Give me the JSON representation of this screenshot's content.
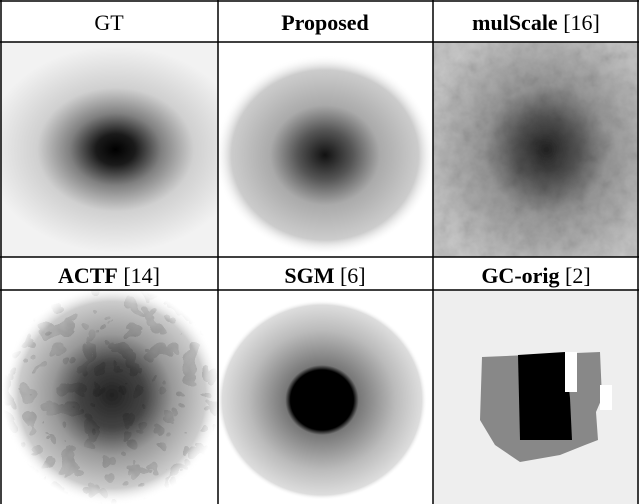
{
  "panels": [
    {
      "name": "GT"
    },
    {
      "name": "Proposed"
    },
    {
      "name": "mulScale",
      "ref": "[16]"
    },
    {
      "name": "ACTF",
      "ref": "[14]"
    },
    {
      "name": "SGM",
      "ref": "[6]"
    },
    {
      "name": "GC-orig",
      "ref": "[2]"
    }
  ]
}
